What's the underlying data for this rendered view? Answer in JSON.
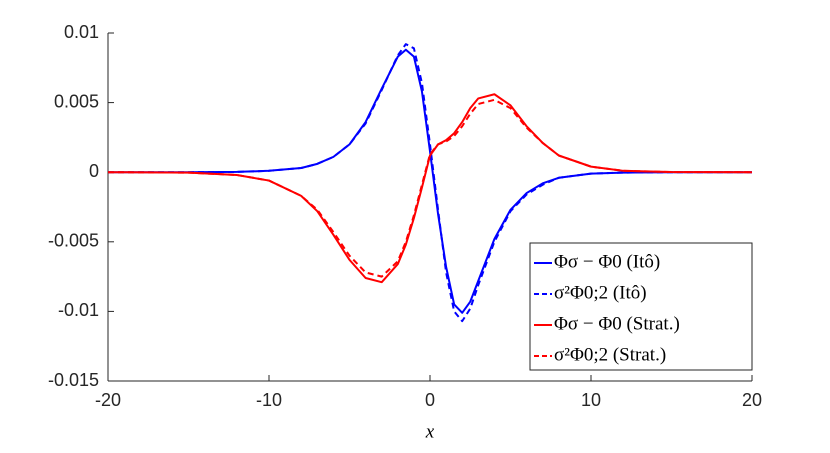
{
  "chart_data": {
    "type": "line",
    "xlabel": "x",
    "x": [
      -20,
      -15,
      -12,
      -10,
      -8,
      -7,
      -6,
      -5,
      -4,
      -3,
      -2,
      -1.5,
      -1,
      -0.5,
      0,
      0.5,
      1,
      1.5,
      2,
      2.5,
      3,
      4,
      5,
      6,
      7,
      8,
      10,
      12,
      15,
      20
    ],
    "series": [
      {
        "name": "Φσ − Φ0 (Itô)",
        "color": "#0000ff",
        "dash": false,
        "values": [
          0,
          0,
          2e-05,
          0.0001,
          0.0003,
          0.0006,
          0.0011,
          0.002,
          0.0036,
          0.006,
          0.0083,
          0.0088,
          0.0083,
          0.0058,
          0.0015,
          -0.003,
          -0.0068,
          -0.0095,
          -0.0101,
          -0.0093,
          -0.0078,
          -0.0048,
          -0.0027,
          -0.0015,
          -0.0008,
          -0.0004,
          -0.0001,
          -3e-05,
          0,
          0
        ]
      },
      {
        "name": "σ²Φ0;2 (Itô)",
        "color": "#0000ff",
        "dash": true,
        "values": [
          0,
          0,
          2e-05,
          0.0001,
          0.0003,
          0.0006,
          0.0011,
          0.002,
          0.0035,
          0.0059,
          0.0084,
          0.0092,
          0.0089,
          0.0064,
          0.002,
          -0.0027,
          -0.0072,
          -0.01,
          -0.0107,
          -0.0098,
          -0.0081,
          -0.005,
          -0.0028,
          -0.0016,
          -0.0009,
          -0.0004,
          -0.0001,
          -3e-05,
          0,
          0
        ]
      },
      {
        "name": "Φσ − Φ0 (Strat.)",
        "color": "#ff0000",
        "dash": false,
        "values": [
          0,
          -3e-05,
          -0.0002,
          -0.0006,
          -0.0017,
          -0.0028,
          -0.0045,
          -0.0063,
          -0.0076,
          -0.0079,
          -0.0066,
          -0.0052,
          -0.0033,
          -0.0011,
          0.0012,
          0.002,
          0.0023,
          0.0028,
          0.0036,
          0.0046,
          0.0053,
          0.0056,
          0.0048,
          0.0033,
          0.0021,
          0.0012,
          0.0004,
          0.0001,
          1e-05,
          0
        ]
      },
      {
        "name": "σ²Φ0;2 (Strat.)",
        "color": "#ff0000",
        "dash": true,
        "values": [
          0,
          -3e-05,
          -0.0002,
          -0.0006,
          -0.0017,
          -0.0027,
          -0.0043,
          -0.006,
          -0.0072,
          -0.0075,
          -0.0064,
          -0.005,
          -0.0031,
          -0.0009,
          0.0013,
          0.002,
          0.0022,
          0.0026,
          0.0033,
          0.0042,
          0.0049,
          0.0052,
          0.0046,
          0.0032,
          0.0021,
          0.0012,
          0.0004,
          0.0001,
          1e-05,
          0
        ]
      }
    ],
    "xlim": [
      -20,
      20
    ],
    "xticks": [
      -20,
      -10,
      0,
      10,
      20
    ],
    "ylim": [
      -0.015,
      0.01
    ],
    "yticks": [
      -0.015,
      -0.01,
      -0.005,
      0,
      0.005,
      0.01
    ],
    "legend": "lower right"
  }
}
